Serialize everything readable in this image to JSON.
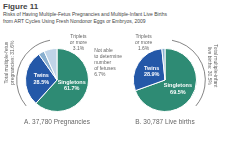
{
  "title": "Figure 11",
  "subtitle": "Risks of Having Multiple-Fetus Pregnancies and Multiple-Infant Live Births\nfrom ART Cycles Using Fresh Nondonor Eggs or Embryos, 2009",
  "chart_data": [
    {
      "type": "pie",
      "title": "A. 37,780 Pregnancies",
      "categories": [
        "Singletons",
        "Twins",
        "Triplets\nor more",
        "Not able\nto determine\nnumber\nof fetuses"
      ],
      "values": [
        61.7,
        28.5,
        3.1,
        6.7
      ],
      "value_labels": [
        "61.7%",
        "28.5%",
        "3.1%",
        "6.7%"
      ],
      "colors": [
        "#2e8b74",
        "#2458a8",
        "#8ab0d0",
        "#c0d4e8"
      ],
      "data_labels": true,
      "annotations": [
        "Total multiple-fetus\npregnancies: 31.6%"
      ]
    },
    {
      "type": "pie",
      "title": "B. 30,787 Live births",
      "categories": [
        "Singletons",
        "Twins",
        "Triplets\nor more"
      ],
      "values": [
        69.5,
        28.9,
        1.6
      ],
      "value_labels": [
        "69.5%",
        "28.9%",
        "1.6%"
      ],
      "colors": [
        "#2e8b74",
        "#2458a8",
        "#8ab0d0"
      ],
      "data_labels": true,
      "annotations": [
        "Total multiple-infant\nlive births: 30.5%"
      ]
    }
  ]
}
